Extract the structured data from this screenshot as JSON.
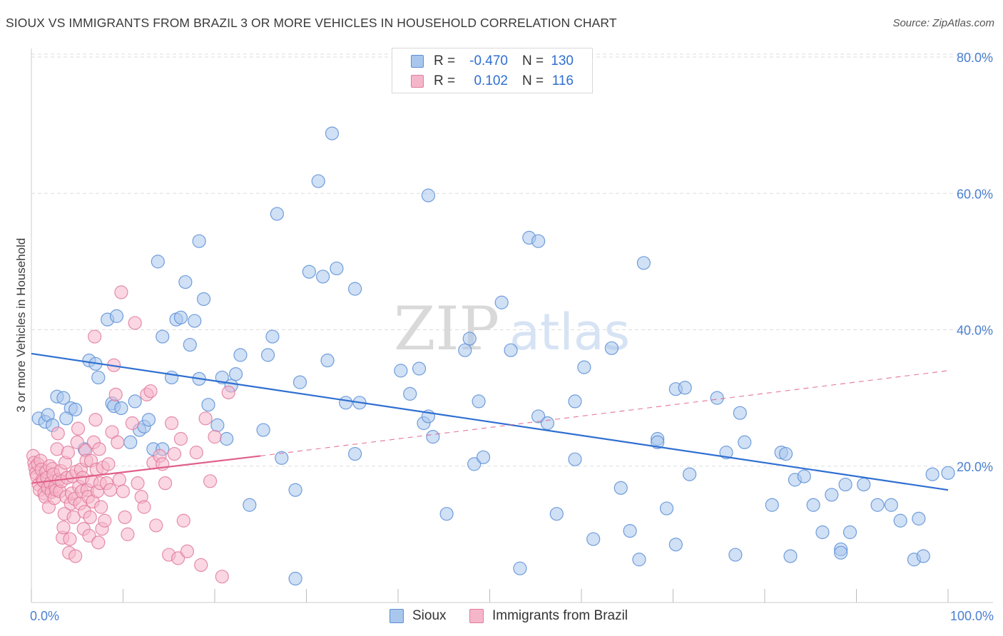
{
  "title": "SIOUX VS IMMIGRANTS FROM BRAZIL 3 OR MORE VEHICLES IN HOUSEHOLD CORRELATION CHART",
  "source": "Source: ZipAtlas.com",
  "watermark": {
    "zip": "ZIP",
    "atlas": "atlas"
  },
  "legend_top": [
    {
      "r_label": "R =",
      "r_value": "-0.470",
      "n_label": "N =",
      "n_value": "130"
    },
    {
      "r_label": "R =",
      "r_value": "0.102",
      "n_label": "N =",
      "n_value": "116"
    }
  ],
  "legend_bottom": [
    "Sioux",
    "Immigrants from Brazil"
  ],
  "colors": {
    "sioux_fill": "#a9c6ec",
    "sioux_stroke": "#5b8ed6",
    "sioux_line": "#2f6fd1",
    "brazil_fill": "#f6b6ca",
    "brazil_stroke": "#e07a9c",
    "brazil_line": "#e0608a",
    "grid": "#dddddd",
    "tick_text": "#4a7fd0"
  },
  "chart_data": {
    "type": "scatter",
    "title": "SIOUX VS IMMIGRANTS FROM BRAZIL 3 OR MORE VEHICLES IN HOUSEHOLD CORRELATION CHART",
    "xlabel": "",
    "ylabel": "3 or more Vehicles in Household",
    "xlim": [
      0,
      100
    ],
    "ylim": [
      0,
      80
    ],
    "x_tick_labels": [
      "0.0%",
      "100.0%"
    ],
    "y_ticks": [
      20,
      40,
      60,
      80
    ],
    "y_tick_labels": [
      "20.0%",
      "40.0%",
      "60.0%",
      "80.0%"
    ],
    "grid": true,
    "series": [
      {
        "name": "Sioux",
        "r": -0.47,
        "n": 130,
        "trend": {
          "x": [
            0,
            100
          ],
          "y": [
            36.5,
            16.5
          ],
          "style": "solid"
        },
        "points": [
          [
            0.8,
            27
          ],
          [
            1.5,
            26.5
          ],
          [
            1.8,
            27.5
          ],
          [
            2.3,
            26
          ],
          [
            2.8,
            30.2
          ],
          [
            3.5,
            30
          ],
          [
            4.3,
            28.5
          ],
          [
            4.8,
            28.3
          ],
          [
            3.8,
            27
          ],
          [
            5.8,
            22.5
          ],
          [
            6.3,
            35.5
          ],
          [
            7,
            35
          ],
          [
            7.3,
            33
          ],
          [
            8.3,
            41.5
          ],
          [
            8.8,
            29.2
          ],
          [
            9,
            28.8
          ],
          [
            9.8,
            28.5
          ],
          [
            9.3,
            42
          ],
          [
            10.8,
            23.5
          ],
          [
            11.3,
            29.5
          ],
          [
            11.8,
            25.3
          ],
          [
            12.3,
            25.8
          ],
          [
            12.8,
            26.8
          ],
          [
            13.3,
            22.5
          ],
          [
            14.3,
            22.5
          ],
          [
            13.8,
            50
          ],
          [
            14.3,
            39
          ],
          [
            15.3,
            33
          ],
          [
            15.8,
            41.5
          ],
          [
            16.3,
            41.8
          ],
          [
            16.8,
            47
          ],
          [
            17.3,
            37.8
          ],
          [
            17.8,
            41.3
          ],
          [
            18.3,
            32.8
          ],
          [
            18.8,
            44.5
          ],
          [
            19.3,
            29
          ],
          [
            18.3,
            53
          ],
          [
            20.3,
            26
          ],
          [
            20.8,
            33
          ],
          [
            21.3,
            24
          ],
          [
            21.8,
            31.8
          ],
          [
            22.3,
            33.5
          ],
          [
            22.8,
            36.3
          ],
          [
            23.8,
            14.3
          ],
          [
            25.3,
            25.3
          ],
          [
            25.8,
            36.3
          ],
          [
            26.3,
            39
          ],
          [
            26.8,
            57
          ],
          [
            27.3,
            21.2
          ],
          [
            28.8,
            3.5
          ],
          [
            28.8,
            16.5
          ],
          [
            29.3,
            32.3
          ],
          [
            30.3,
            48.5
          ],
          [
            31.3,
            61.8
          ],
          [
            31.8,
            47.8
          ],
          [
            32.3,
            35.5
          ],
          [
            32.8,
            68.8
          ],
          [
            33.3,
            49
          ],
          [
            34.3,
            29.3
          ],
          [
            35.3,
            21.8
          ],
          [
            35.8,
            29.3
          ],
          [
            35.3,
            46
          ],
          [
            40.3,
            34
          ],
          [
            41.3,
            30.6
          ],
          [
            42.3,
            34.3
          ],
          [
            42.8,
            26.3
          ],
          [
            43.3,
            27.3
          ],
          [
            43.8,
            24.3
          ],
          [
            43.3,
            59.7
          ],
          [
            45.3,
            13
          ],
          [
            47.3,
            37
          ],
          [
            47.8,
            38.7
          ],
          [
            48.3,
            20.3
          ],
          [
            48.8,
            29.5
          ],
          [
            49.3,
            21.3
          ],
          [
            51.3,
            44
          ],
          [
            52.3,
            37
          ],
          [
            53.3,
            5
          ],
          [
            54.3,
            53.5
          ],
          [
            55.3,
            53
          ],
          [
            55.3,
            27.3
          ],
          [
            56.3,
            26.3
          ],
          [
            57.3,
            13
          ],
          [
            59.3,
            29.5
          ],
          [
            59.3,
            21
          ],
          [
            60.3,
            34.5
          ],
          [
            61.3,
            9.3
          ],
          [
            63.3,
            37.3
          ],
          [
            64.3,
            16.8
          ],
          [
            65.3,
            10.5
          ],
          [
            66.3,
            6.3
          ],
          [
            66.8,
            49.8
          ],
          [
            68.3,
            24
          ],
          [
            68.3,
            23.5
          ],
          [
            69.3,
            13.8
          ],
          [
            70.3,
            31.3
          ],
          [
            70.3,
            8.5
          ],
          [
            71.3,
            31.5
          ],
          [
            71.8,
            18.8
          ],
          [
            74.8,
            30
          ],
          [
            75.8,
            22
          ],
          [
            76.8,
            7
          ],
          [
            77.3,
            27.8
          ],
          [
            77.8,
            23.5
          ],
          [
            80.8,
            14.3
          ],
          [
            81.8,
            22
          ],
          [
            82.3,
            21.8
          ],
          [
            82.8,
            6.8
          ],
          [
            83.3,
            18
          ],
          [
            84.3,
            18.5
          ],
          [
            85.3,
            14.3
          ],
          [
            86.3,
            10.3
          ],
          [
            87.3,
            15.8
          ],
          [
            88.3,
            7.8
          ],
          [
            88.3,
            7.3
          ],
          [
            88.8,
            17.3
          ],
          [
            89.3,
            10.3
          ],
          [
            90.8,
            17.3
          ],
          [
            92.3,
            14.3
          ],
          [
            93.8,
            14.3
          ],
          [
            94.8,
            12
          ],
          [
            96.3,
            6.3
          ],
          [
            96.8,
            12.3
          ],
          [
            97.3,
            6.8
          ],
          [
            98.3,
            18.8
          ],
          [
            100,
            19
          ]
        ]
      },
      {
        "name": "Immigrants from Brazil",
        "r": 0.102,
        "n": 116,
        "trend": {
          "x": [
            0,
            25
          ],
          "y": [
            17.5,
            21.5
          ],
          "style": "solid",
          "dashed_extension": {
            "x": [
              25,
              100
            ],
            "y": [
              21.5,
              34
            ]
          }
        },
        "points": [
          [
            0.2,
            21.5
          ],
          [
            0.3,
            20.5
          ],
          [
            0.4,
            19.8
          ],
          [
            0.5,
            19
          ],
          [
            0.6,
            18.5
          ],
          [
            0.7,
            20.3
          ],
          [
            0.8,
            17.3
          ],
          [
            0.9,
            16.5
          ],
          [
            1,
            20.8
          ],
          [
            1.1,
            19.5
          ],
          [
            1.2,
            18
          ],
          [
            1.3,
            17.8
          ],
          [
            1.4,
            16
          ],
          [
            1.5,
            15.5
          ],
          [
            1.6,
            19.2
          ],
          [
            1.7,
            18.3
          ],
          [
            1.8,
            16.8
          ],
          [
            1.9,
            14
          ],
          [
            2,
            20
          ],
          [
            2.1,
            17.5
          ],
          [
            2.2,
            16.2
          ],
          [
            2.3,
            19.6
          ],
          [
            2.4,
            18.8
          ],
          [
            2.5,
            15.3
          ],
          [
            2.6,
            17
          ],
          [
            2.7,
            16.5
          ],
          [
            2.8,
            22.5
          ],
          [
            2.9,
            24.8
          ],
          [
            3,
            18
          ],
          [
            3.1,
            16.3
          ],
          [
            3.2,
            19.3
          ],
          [
            3.3,
            17.8
          ],
          [
            3.4,
            9.5
          ],
          [
            3.5,
            11
          ],
          [
            3.6,
            13
          ],
          [
            3.7,
            20.5
          ],
          [
            3.8,
            15.5
          ],
          [
            3.9,
            18.3
          ],
          [
            4,
            22
          ],
          [
            4.1,
            7.3
          ],
          [
            4.2,
            9.3
          ],
          [
            4.3,
            14.5
          ],
          [
            4.4,
            16
          ],
          [
            4.5,
            18.5
          ],
          [
            4.6,
            12.5
          ],
          [
            4.7,
            15.2
          ],
          [
            4.8,
            6.8
          ],
          [
            4.9,
            19.2
          ],
          [
            5,
            23.5
          ],
          [
            5.1,
            25.5
          ],
          [
            5.2,
            17
          ],
          [
            5.3,
            14.5
          ],
          [
            5.4,
            19.5
          ],
          [
            5.5,
            16.3
          ],
          [
            5.6,
            18.3
          ],
          [
            5.7,
            10.8
          ],
          [
            5.8,
            13.3
          ],
          [
            5.9,
            22.3
          ],
          [
            6,
            20.8
          ],
          [
            6.1,
            16.5
          ],
          [
            6.2,
            15.5
          ],
          [
            6.3,
            9.8
          ],
          [
            6.4,
            12.5
          ],
          [
            6.5,
            20.8
          ],
          [
            6.6,
            17.8
          ],
          [
            6.7,
            14.8
          ],
          [
            6.8,
            23.5
          ],
          [
            6.9,
            39
          ],
          [
            7,
            26.8
          ],
          [
            7.1,
            19.5
          ],
          [
            7.2,
            16.3
          ],
          [
            7.3,
            8.8
          ],
          [
            7.4,
            22.5
          ],
          [
            7.5,
            17.5
          ],
          [
            7.6,
            14
          ],
          [
            7.7,
            10.8
          ],
          [
            7.8,
            19.8
          ],
          [
            8,
            12
          ],
          [
            8.2,
            17.5
          ],
          [
            8.4,
            20.3
          ],
          [
            8.6,
            16.5
          ],
          [
            8.8,
            25
          ],
          [
            9,
            34.8
          ],
          [
            9.2,
            30.5
          ],
          [
            9.4,
            23.5
          ],
          [
            9.6,
            18
          ],
          [
            9.8,
            45.5
          ],
          [
            10,
            16.3
          ],
          [
            10.2,
            12.5
          ],
          [
            10.5,
            10
          ],
          [
            11,
            26.3
          ],
          [
            11.3,
            41
          ],
          [
            11.6,
            17.5
          ],
          [
            12,
            15.5
          ],
          [
            12.3,
            14
          ],
          [
            12.6,
            30.5
          ],
          [
            13,
            31
          ],
          [
            13.3,
            20.5
          ],
          [
            13.6,
            11.3
          ],
          [
            14,
            21.5
          ],
          [
            14.3,
            20.3
          ],
          [
            14.6,
            17.5
          ],
          [
            15,
            7
          ],
          [
            15.3,
            26.3
          ],
          [
            15.6,
            21.8
          ],
          [
            16,
            6.5
          ],
          [
            16.3,
            24
          ],
          [
            16.6,
            12
          ],
          [
            17,
            7.5
          ],
          [
            18,
            22
          ],
          [
            18.5,
            5.5
          ],
          [
            19,
            27
          ],
          [
            19.5,
            17.8
          ],
          [
            20,
            24.3
          ],
          [
            20.8,
            3.8
          ],
          [
            21.5,
            30.8
          ]
        ]
      }
    ]
  }
}
